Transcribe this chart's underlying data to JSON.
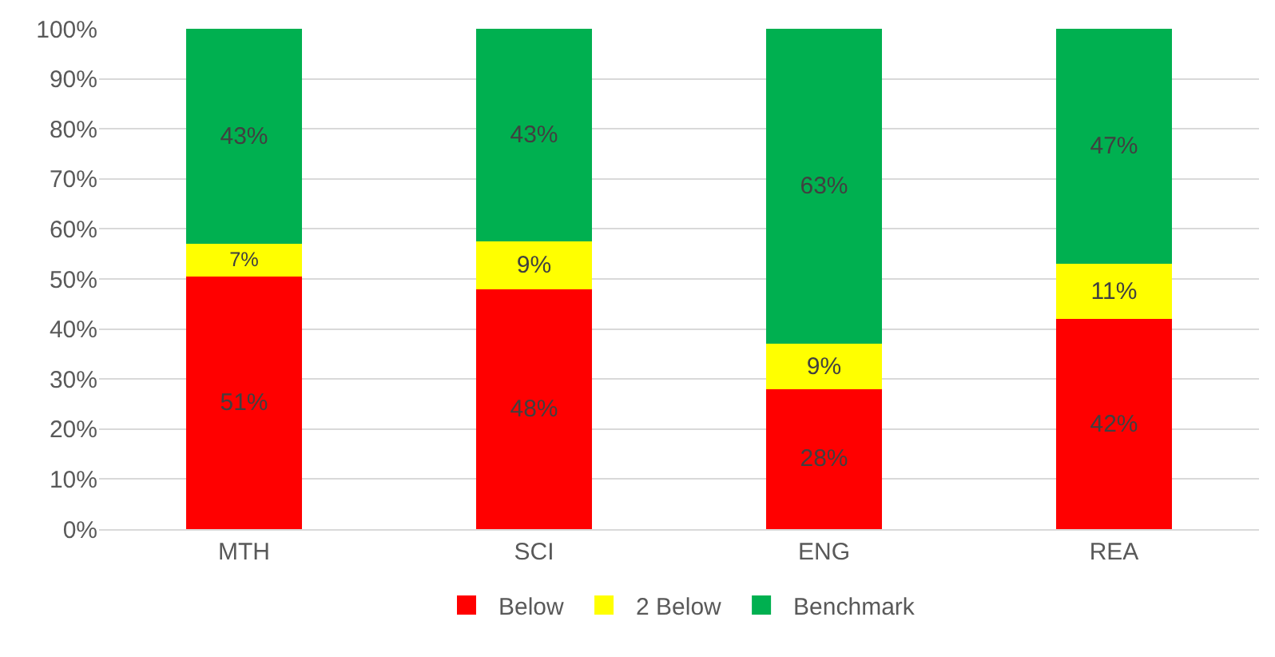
{
  "chart_data": {
    "type": "bar",
    "stacked": true,
    "categories": [
      "MTH",
      "SCI",
      "ENG",
      "REA"
    ],
    "series": [
      {
        "name": "Below",
        "color": "#ff0000",
        "values": [
          50.5,
          48,
          28,
          42
        ],
        "value_labels": [
          "51%",
          "48%",
          "28%",
          "42%"
        ]
      },
      {
        "name": "2 Below",
        "color": "#ffff00",
        "values": [
          6.5,
          9.5,
          9,
          11
        ],
        "value_labels": [
          "7%",
          "9%",
          "9%",
          "11%"
        ]
      },
      {
        "name": "Benchmark",
        "color": "#00b050",
        "values": [
          43,
          42.5,
          63,
          47
        ],
        "value_labels": [
          "43%",
          "43%",
          "63%",
          "47%"
        ]
      }
    ],
    "ylim": [
      0,
      100
    ],
    "yticks": [
      {
        "value": 0,
        "label": "0%"
      },
      {
        "value": 10,
        "label": "10%"
      },
      {
        "value": 20,
        "label": "20%"
      },
      {
        "value": 30,
        "label": "30%"
      },
      {
        "value": 40,
        "label": "40%"
      },
      {
        "value": 50,
        "label": "50%"
      },
      {
        "value": 60,
        "label": "60%"
      },
      {
        "value": 70,
        "label": "70%"
      },
      {
        "value": 80,
        "label": "80%"
      },
      {
        "value": 90,
        "label": "90%"
      },
      {
        "value": 100,
        "label": "100%"
      }
    ],
    "grid": "y",
    "legend": "bottom"
  }
}
